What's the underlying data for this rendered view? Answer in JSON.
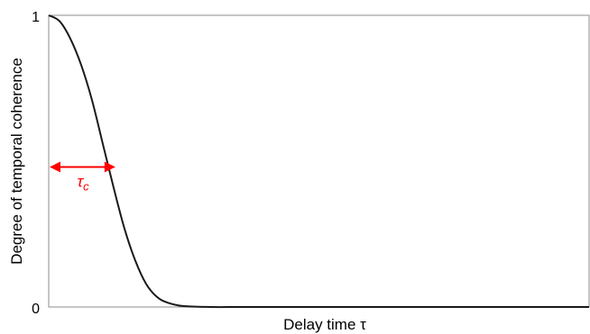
{
  "chart_data": {
    "type": "line",
    "xlabel": "Delay time τ",
    "ylabel": "Degree of temporal coherence",
    "ylim": [
      0,
      1
    ],
    "y_ticks": [
      "0",
      "1"
    ],
    "grid": false,
    "series": [
      {
        "x": [
          0,
          0.02,
          0.04,
          0.06,
          0.08,
          0.1,
          0.12,
          0.14,
          0.16,
          0.18,
          0.2,
          0.22,
          0.25,
          0.3,
          0.35,
          0.4,
          0.5,
          0.6,
          0.7,
          0.8,
          0.9,
          1.0
        ],
        "y": [
          1.0,
          0.98,
          0.92,
          0.83,
          0.71,
          0.56,
          0.41,
          0.27,
          0.16,
          0.08,
          0.035,
          0.015,
          0.003,
          0.0,
          0.0,
          0.0,
          0.0,
          0.0,
          0.0,
          0.0,
          0.0,
          0.0
        ],
        "color": "#1a1a1a"
      }
    ],
    "annotation": {
      "label": "τ",
      "subscript": "c",
      "x_start": 0,
      "x_end": 0.12,
      "y": 0.48,
      "color": "#ff0000"
    }
  }
}
